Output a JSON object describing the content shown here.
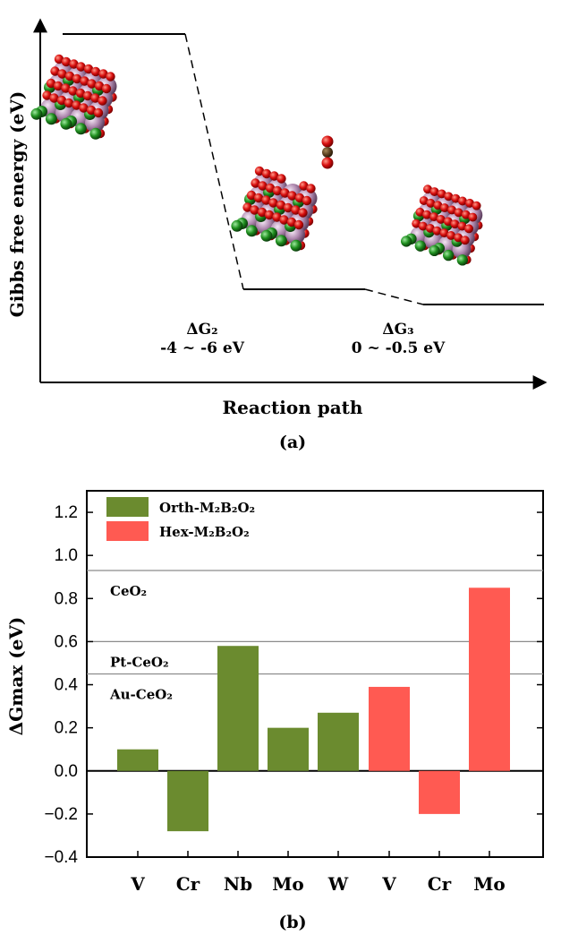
{
  "panel_a": {
    "ylabel": "Gibbs free energy (eV)",
    "xlabel": "Reaction path",
    "caption": "(a)",
    "steps": [
      {
        "label": "ΔG₂",
        "range": "-4 ~ -6 eV"
      },
      {
        "label": "ΔG₃",
        "range": "0 ~ -0.5 eV"
      }
    ]
  },
  "panel_b": {
    "caption": "(b)"
  },
  "chart_data": [
    {
      "type": "line",
      "title": "",
      "xlabel": "Reaction path",
      "ylabel": "Gibbs free energy (eV)",
      "annotations": [
        "ΔG₂ -4 ~ -6 eV",
        "ΔG₃ 0 ~ -0.5 eV"
      ]
    },
    {
      "type": "bar",
      "ylabel": "ΔGmax (eV)",
      "ylim": [
        -0.4,
        1.3
      ],
      "yticks": [
        -0.4,
        -0.2,
        0.0,
        0.2,
        0.4,
        0.6,
        0.8,
        1.0,
        1.2
      ],
      "ytick_labels": [
        "−0.4",
        "−0.2",
        "0.0",
        "0.2",
        "0.4",
        "0.6",
        "0.8",
        "1.0",
        "1.2"
      ],
      "categories": [
        "V",
        "Cr",
        "Nb",
        "Mo",
        "W",
        "V",
        "Cr",
        "Mo"
      ],
      "series": [
        {
          "name": "Orth-M₂B₂O₂",
          "color": "#6b8b2f",
          "values": [
            0.1,
            -0.28,
            0.58,
            0.2,
            0.27,
            null,
            null,
            null
          ]
        },
        {
          "name": "Hex-M₂B₂O₂",
          "color": "#ff5a52",
          "values": [
            null,
            null,
            null,
            null,
            null,
            0.39,
            -0.2,
            0.85
          ]
        }
      ],
      "reference_lines": [
        {
          "label": "CeO₂",
          "value": 0.93
        },
        {
          "label": "Pt-CeO₂",
          "value": 0.6
        },
        {
          "label": "Au-CeO₂",
          "value": 0.45
        }
      ],
      "legend": "top-left"
    }
  ]
}
